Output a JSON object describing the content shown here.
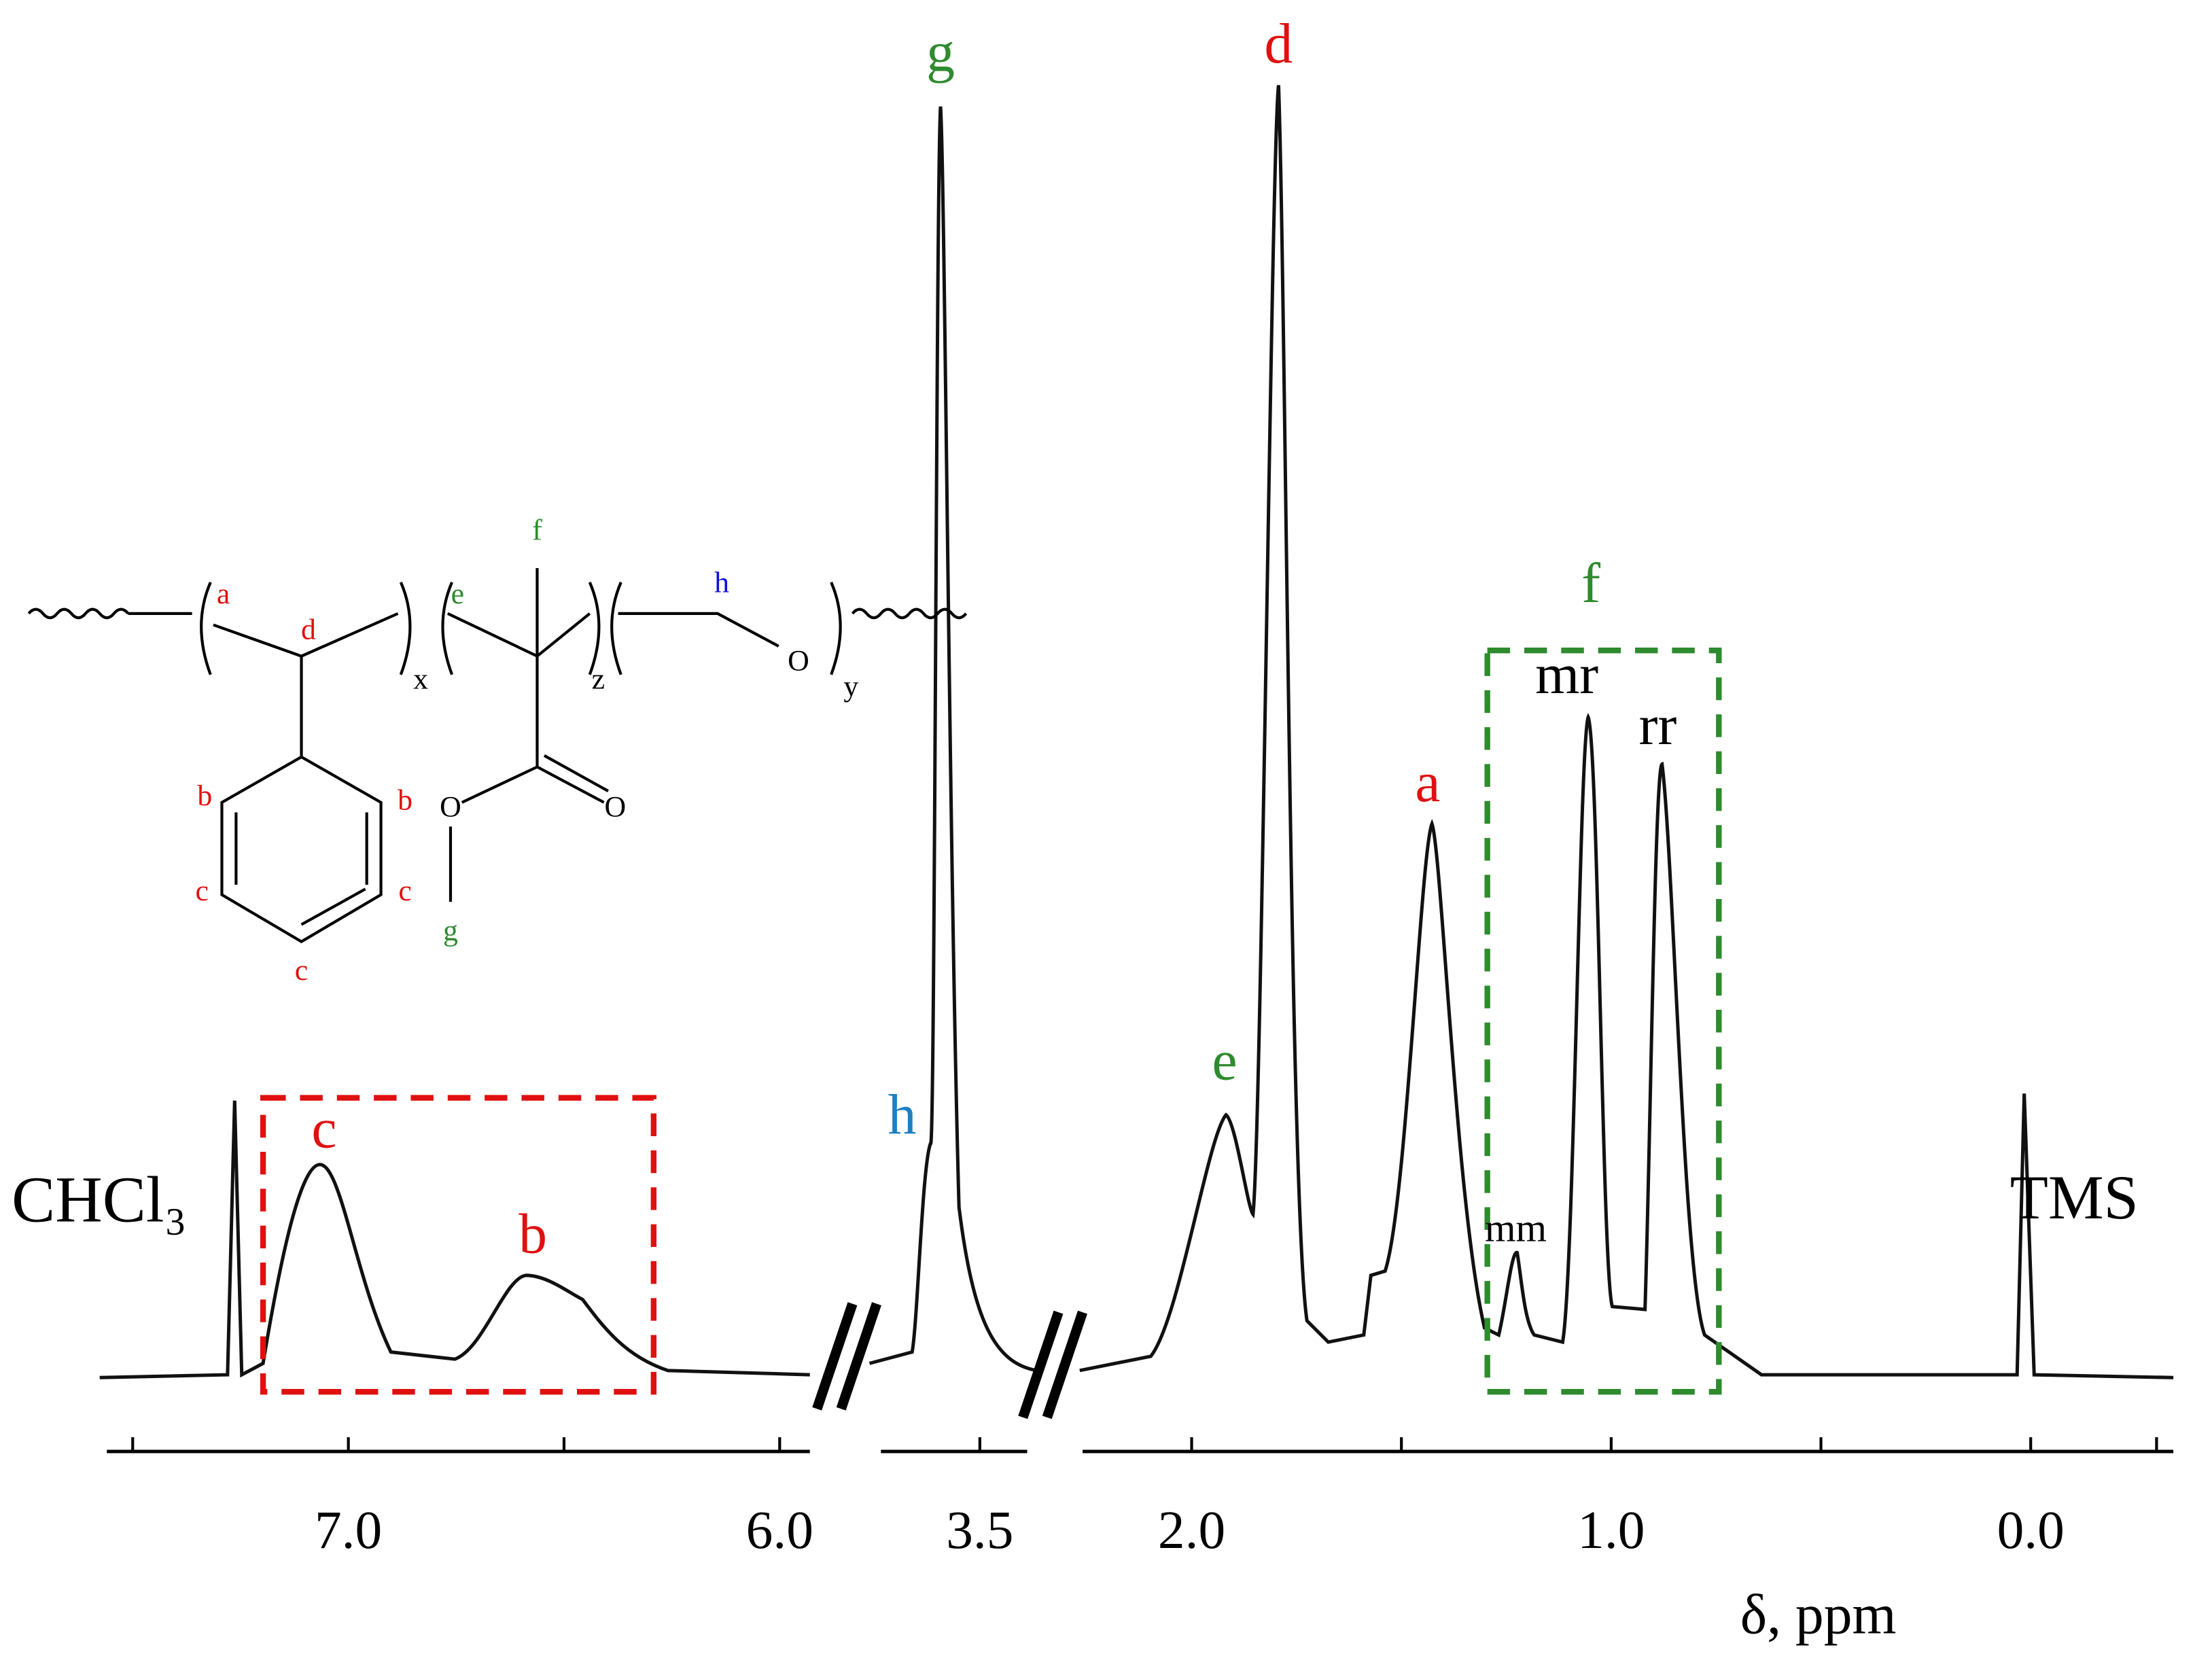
{
  "chart_data": {
    "type": "spectrum",
    "xlabel": "δ, ppm",
    "axis_segments": [
      {
        "xlim": [
          7.56,
          5.93
        ],
        "xticks": [
          {
            "value": 7,
            "label": "7.0"
          },
          {
            "value": 6,
            "label": "6.0"
          }
        ],
        "minor_xticks": [
          7.5,
          6.5
        ]
      },
      {
        "xlim": [
          3.73,
          3.39
        ],
        "xticks": [
          {
            "value": 3.5,
            "label": "3.5"
          }
        ],
        "minor_xticks": []
      },
      {
        "xlim": [
          2.26,
          -0.34
        ],
        "xticks": [
          {
            "value": 2,
            "label": "2.0"
          },
          {
            "value": 1,
            "label": "1.0"
          },
          {
            "value": 0,
            "label": "0.0"
          }
        ],
        "minor_xticks": [
          1.5,
          0.5,
          -0.3
        ]
      }
    ],
    "peak_labels": [
      "g",
      "d",
      "f",
      "mr",
      "rr",
      "a",
      "mm",
      "e",
      "h",
      "c",
      "b",
      "CHCl₃",
      "TMS"
    ],
    "structure_labels": [
      "a",
      "d",
      "e",
      "f",
      "h",
      "O",
      "x",
      "z",
      "y",
      "b",
      "b",
      "c",
      "c",
      "c",
      "O",
      "O",
      "g"
    ]
  }
}
